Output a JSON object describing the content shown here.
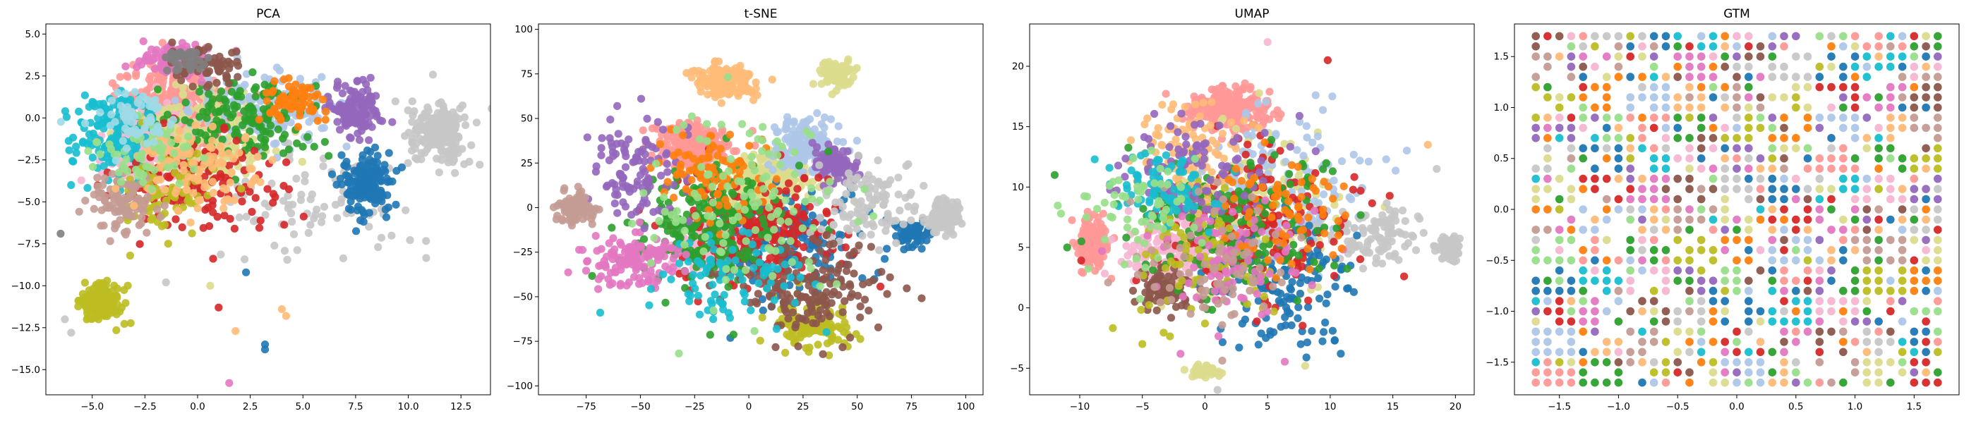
{
  "chart_data": [
    {
      "type": "scatter",
      "title": "PCA",
      "xlabel": "",
      "ylabel": "",
      "xlim": [
        -7.2,
        13.9
      ],
      "ylim": [
        -16.5,
        5.6
      ],
      "xticks": [
        -5.0,
        -2.5,
        0.0,
        2.5,
        5.0,
        7.5,
        10.0,
        12.5
      ],
      "yticks": [
        5.0,
        2.5,
        0.0,
        -2.5,
        -5.0,
        -7.5,
        -10.0,
        -12.5,
        -15.0
      ],
      "xtick_labels": [
        "−5.0",
        "−2.5",
        "0.0",
        "2.5",
        "5.0",
        "7.5",
        "10.0",
        "12.5"
      ],
      "ytick_labels": [
        "5.0",
        "2.5",
        "0.0",
        "−2.5",
        "−5.0",
        "−7.5",
        "−10.0",
        "−12.5",
        "−15.0"
      ],
      "grid": false,
      "clusters": [
        {
          "color": "#ff9896",
          "cx": -1.0,
          "cy": 0.5,
          "sx": 2.0,
          "sy": 2.2,
          "n": 420
        },
        {
          "color": "#f7b6d2",
          "cx": -2.0,
          "cy": -1.5,
          "sx": 1.8,
          "sy": 2.0,
          "n": 260
        },
        {
          "color": "#dbdb8d",
          "cx": 0.5,
          "cy": -1.0,
          "sx": 2.6,
          "sy": 2.2,
          "n": 220
        },
        {
          "color": "#aec7e8",
          "cx": 3.5,
          "cy": 0.5,
          "sx": 2.8,
          "sy": 1.8,
          "n": 170
        },
        {
          "color": "#c7c7c7",
          "cx": 11.5,
          "cy": -1.0,
          "sx": 1.2,
          "sy": 1.6,
          "n": 200
        },
        {
          "color": "#c7c7c7",
          "cx": 5.0,
          "cy": -5.0,
          "sx": 4.5,
          "sy": 2.5,
          "n": 90
        },
        {
          "color": "#1f77b4",
          "cx": 8.0,
          "cy": -4.0,
          "sx": 0.9,
          "sy": 1.5,
          "n": 170
        },
        {
          "color": "#9467bd",
          "cx": 7.5,
          "cy": 0.5,
          "sx": 1.0,
          "sy": 1.4,
          "n": 130
        },
        {
          "color": "#2ca02c",
          "cx": 2.0,
          "cy": 0.0,
          "sx": 3.0,
          "sy": 2.2,
          "n": 160
        },
        {
          "color": "#17becf",
          "cx": -4.0,
          "cy": -1.0,
          "sx": 1.8,
          "sy": 2.2,
          "n": 140
        },
        {
          "color": "#d62728",
          "cx": 0.0,
          "cy": -4.0,
          "sx": 3.5,
          "sy": 2.4,
          "n": 130
        },
        {
          "color": "#bcbd22",
          "cx": -4.5,
          "cy": -11.0,
          "sx": 0.8,
          "sy": 0.9,
          "n": 190
        },
        {
          "color": "#bcbd22",
          "cx": -1.5,
          "cy": -4.5,
          "sx": 2.0,
          "sy": 2.0,
          "n": 80
        },
        {
          "color": "#c49c94",
          "cx": -3.5,
          "cy": -5.0,
          "sx": 1.4,
          "sy": 1.4,
          "n": 100
        },
        {
          "color": "#ffbb78",
          "cx": 0.0,
          "cy": -3.0,
          "sx": 2.5,
          "sy": 2.0,
          "n": 100
        },
        {
          "color": "#ff7f0e",
          "cx": 4.5,
          "cy": 1.0,
          "sx": 1.5,
          "sy": 1.0,
          "n": 70
        },
        {
          "color": "#e377c2",
          "cx": -1.0,
          "cy": 3.5,
          "sx": 1.6,
          "sy": 0.8,
          "n": 120
        },
        {
          "color": "#8c564b",
          "cx": 0.5,
          "cy": 3.0,
          "sx": 1.5,
          "sy": 1.0,
          "n": 60
        },
        {
          "color": "#98df8a",
          "cx": -2.5,
          "cy": -2.0,
          "sx": 2.0,
          "sy": 1.5,
          "n": 60
        },
        {
          "color": "#9edae5",
          "cx": -3.0,
          "cy": 0.0,
          "sx": 1.5,
          "sy": 1.5,
          "n": 60
        },
        {
          "color": "#7f7f7f",
          "cx": -0.5,
          "cy": 3.5,
          "sx": 1.0,
          "sy": 0.6,
          "n": 40
        }
      ],
      "outliers": [
        {
          "x": 1.5,
          "y": -15.8,
          "color": "#e377c2"
        },
        {
          "x": 1.8,
          "y": -12.7,
          "color": "#ffbb78"
        },
        {
          "x": 3.2,
          "y": -13.5,
          "color": "#1f77b4"
        },
        {
          "x": 3.2,
          "y": -13.8,
          "color": "#1f77b4"
        },
        {
          "x": 4.0,
          "y": -11.4,
          "color": "#ffbb78"
        },
        {
          "x": 4.2,
          "y": -11.8,
          "color": "#ffbb78"
        },
        {
          "x": 0.6,
          "y": -10.0,
          "color": "#dbdb8d"
        },
        {
          "x": 1.0,
          "y": -11.3,
          "color": "#d62728"
        },
        {
          "x": -1.5,
          "y": -9.8,
          "color": "#c7c7c7"
        },
        {
          "x": 2.3,
          "y": -9.2,
          "color": "#1f77b4"
        },
        {
          "x": -3.2,
          "y": -8.2,
          "color": "#bcbd22"
        },
        {
          "x": -6.3,
          "y": -12.0,
          "color": "#c7c7c7"
        },
        {
          "x": -6.0,
          "y": -12.8,
          "color": "#c7c7c7"
        },
        {
          "x": -6.5,
          "y": -6.9,
          "color": "#7f7f7f"
        },
        {
          "x": -6.0,
          "y": -4.0,
          "color": "#17becf"
        }
      ]
    },
    {
      "type": "scatter",
      "title": "t-SNE",
      "xlabel": "",
      "ylabel": "",
      "xlim": [
        -97,
        108
      ],
      "ylim": [
        -105,
        103
      ],
      "xticks": [
        -75,
        -50,
        -25,
        0,
        25,
        50,
        75,
        100
      ],
      "yticks": [
        100,
        75,
        50,
        25,
        0,
        -25,
        -50,
        -75,
        -100
      ],
      "xtick_labels": [
        "−75",
        "−50",
        "−25",
        "0",
        "25",
        "50",
        "75",
        "100"
      ],
      "ytick_labels": [
        "100",
        "75",
        "50",
        "25",
        "0",
        "−25",
        "−50",
        "−75",
        "−100"
      ],
      "grid": false,
      "clusters": [
        {
          "color": "#ff9896",
          "cx": -25,
          "cy": 35,
          "sx": 14,
          "sy": 10,
          "n": 280
        },
        {
          "color": "#dbdb8d",
          "cx": 10,
          "cy": 15,
          "sx": 18,
          "sy": 16,
          "n": 230
        },
        {
          "color": "#f7b6d2",
          "cx": -15,
          "cy": -22,
          "sx": 14,
          "sy": 10,
          "n": 200
        },
        {
          "color": "#aec7e8",
          "cx": 25,
          "cy": 35,
          "sx": 14,
          "sy": 12,
          "n": 160
        },
        {
          "color": "#9467bd",
          "cx": 40,
          "cy": 25,
          "sx": 8,
          "sy": 8,
          "n": 110
        },
        {
          "color": "#1f77b4",
          "cx": 20,
          "cy": -20,
          "sx": 30,
          "sy": 25,
          "n": 160
        },
        {
          "color": "#1f77b4",
          "cx": 75,
          "cy": -15,
          "sx": 6,
          "sy": 6,
          "n": 60
        },
        {
          "color": "#d62728",
          "cx": 5,
          "cy": -15,
          "sx": 32,
          "sy": 26,
          "n": 240
        },
        {
          "color": "#2ca02c",
          "cx": -20,
          "cy": -10,
          "sx": 30,
          "sy": 30,
          "n": 220
        },
        {
          "color": "#c7c7c7",
          "cx": 90,
          "cy": -5,
          "sx": 5,
          "sy": 7,
          "n": 140
        },
        {
          "color": "#c7c7c7",
          "cx": 55,
          "cy": 0,
          "sx": 18,
          "sy": 20,
          "n": 110
        },
        {
          "color": "#ffbb78",
          "cx": -10,
          "cy": 70,
          "sx": 12,
          "sy": 8,
          "n": 140
        },
        {
          "color": "#dbdb8d",
          "cx": 40,
          "cy": 75,
          "sx": 7,
          "sy": 6,
          "n": 90
        },
        {
          "color": "#bcbd22",
          "cx": 28,
          "cy": -65,
          "sx": 14,
          "sy": 12,
          "n": 150
        },
        {
          "color": "#8c564b",
          "cx": 30,
          "cy": -45,
          "sx": 30,
          "sy": 20,
          "n": 160
        },
        {
          "color": "#e377c2",
          "cx": -55,
          "cy": -30,
          "sx": 18,
          "sy": 12,
          "n": 130
        },
        {
          "color": "#9467bd",
          "cx": -50,
          "cy": 20,
          "sx": 20,
          "sy": 25,
          "n": 110
        },
        {
          "color": "#c49c94",
          "cx": -80,
          "cy": 0,
          "sx": 7,
          "sy": 7,
          "n": 110
        },
        {
          "color": "#ff7f0e",
          "cx": -15,
          "cy": 20,
          "sx": 20,
          "sy": 20,
          "n": 100
        },
        {
          "color": "#17becf",
          "cx": -10,
          "cy": -40,
          "sx": 30,
          "sy": 20,
          "n": 90
        },
        {
          "color": "#98df8a",
          "cx": 0,
          "cy": 0,
          "sx": 40,
          "sy": 40,
          "n": 120
        }
      ],
      "outliers": []
    },
    {
      "type": "scatter",
      "title": "UMAP",
      "xlabel": "",
      "ylabel": "",
      "xlim": [
        -14.0,
        21.5
      ],
      "ylim": [
        -7.2,
        23.5
      ],
      "xticks": [
        -10,
        -5,
        0,
        5,
        10,
        15,
        20
      ],
      "yticks": [
        20,
        15,
        10,
        5,
        0,
        -5
      ],
      "xtick_labels": [
        "−10",
        "−5",
        "0",
        "5",
        "10",
        "15",
        "20"
      ],
      "ytick_labels": [
        "20",
        "15",
        "10",
        "5",
        "0",
        "−5"
      ],
      "grid": false,
      "clusters": [
        {
          "color": "#ff9896",
          "cx": 2.0,
          "cy": 16.5,
          "sx": 2.5,
          "sy": 1.5,
          "n": 220
        },
        {
          "color": "#ff9896",
          "cx": -9.0,
          "cy": 5.5,
          "sx": 1.0,
          "sy": 2.0,
          "n": 120
        },
        {
          "color": "#dbdb8d",
          "cx": 4.0,
          "cy": 8.0,
          "sx": 6.0,
          "sy": 5.0,
          "n": 220
        },
        {
          "color": "#aec7e8",
          "cx": 6.0,
          "cy": 10.0,
          "sx": 6.0,
          "sy": 5.0,
          "n": 150
        },
        {
          "color": "#f7b6d2",
          "cx": -3.0,
          "cy": 4.5,
          "sx": 3.0,
          "sy": 2.0,
          "n": 160
        },
        {
          "color": "#8c564b",
          "cx": -3.0,
          "cy": 1.5,
          "sx": 2.0,
          "sy": 1.5,
          "n": 90
        },
        {
          "color": "#c7c7c7",
          "cx": 19.5,
          "cy": 5.0,
          "sx": 0.7,
          "sy": 0.8,
          "n": 80
        },
        {
          "color": "#c7c7c7",
          "cx": 14.0,
          "cy": 6.0,
          "sx": 3.5,
          "sy": 2.0,
          "n": 100
        },
        {
          "color": "#1f77b4",
          "cx": 6.0,
          "cy": 2.0,
          "sx": 5.0,
          "sy": 4.5,
          "n": 150
        },
        {
          "color": "#d62728",
          "cx": 4.0,
          "cy": 7.0,
          "sx": 6.0,
          "sy": 5.0,
          "n": 190
        },
        {
          "color": "#2ca02c",
          "cx": 2.0,
          "cy": 7.0,
          "sx": 7.0,
          "sy": 5.0,
          "n": 190
        },
        {
          "color": "#bcbd22",
          "cx": 0.0,
          "cy": 5.0,
          "sx": 5.0,
          "sy": 5.0,
          "n": 90
        },
        {
          "color": "#dbdb8d",
          "cx": 0.0,
          "cy": -5.3,
          "sx": 1.0,
          "sy": 0.4,
          "n": 40
        },
        {
          "color": "#ffbb78",
          "cx": -1.0,
          "cy": 13.0,
          "sx": 3.5,
          "sy": 3.5,
          "n": 100
        },
        {
          "color": "#9467bd",
          "cx": -1.0,
          "cy": 11.5,
          "sx": 5.0,
          "sy": 3.5,
          "n": 100
        },
        {
          "color": "#e377c2",
          "cx": 2.0,
          "cy": 4.0,
          "sx": 6.0,
          "sy": 4.0,
          "n": 90
        },
        {
          "color": "#17becf",
          "cx": -3.0,
          "cy": 10.0,
          "sx": 4.0,
          "sy": 3.0,
          "n": 80
        },
        {
          "color": "#ff7f0e",
          "cx": 6.0,
          "cy": 8.0,
          "sx": 4.0,
          "sy": 4.0,
          "n": 70
        },
        {
          "color": "#c49c94",
          "cx": 1.0,
          "cy": 3.0,
          "sx": 5.0,
          "sy": 5.0,
          "n": 70
        },
        {
          "color": "#98df8a",
          "cx": -5.0,
          "cy": 8.0,
          "sx": 4.0,
          "sy": 4.0,
          "n": 60
        }
      ],
      "outliers": [
        {
          "x": -12.0,
          "y": 11.0,
          "color": "#2ca02c"
        },
        {
          "x": -11.5,
          "y": 7.8,
          "color": "#98df8a"
        },
        {
          "x": -11.0,
          "y": 5.0,
          "color": "#2ca02c"
        },
        {
          "x": 9.8,
          "y": 20.5,
          "color": "#d62728"
        },
        {
          "x": 5.0,
          "y": 22.0,
          "color": "#f7b6d2"
        },
        {
          "x": 18.5,
          "y": 11.5,
          "color": "#c7c7c7"
        },
        {
          "x": 17.8,
          "y": 13.5,
          "color": "#ffbb78"
        },
        {
          "x": -5.0,
          "y": -3.0,
          "color": "#bcbd22"
        },
        {
          "x": 8.0,
          "y": -4.8,
          "color": "#dbdb8d"
        },
        {
          "x": 1.0,
          "y": -6.8,
          "color": "#c7c7c7"
        }
      ]
    },
    {
      "type": "scatter",
      "title": "GTM",
      "xlabel": "",
      "ylabel": "",
      "xlim": [
        -1.88,
        1.88
      ],
      "ylim": [
        -1.82,
        1.82
      ],
      "xticks": [
        -1.5,
        -1.0,
        -0.5,
        0.0,
        0.5,
        1.0,
        1.5
      ],
      "yticks": [
        1.5,
        1.0,
        0.5,
        0.0,
        -0.5,
        -1.0,
        -1.5
      ],
      "xtick_labels": [
        "−1.5",
        "−1.0",
        "−0.5",
        "0.0",
        "0.5",
        "1.0",
        "1.5"
      ],
      "ytick_labels": [
        "1.5",
        "1.0",
        "0.5",
        "0.0",
        "−0.5",
        "−1.0",
        "−1.5"
      ],
      "grid": false,
      "lattice": {
        "min": -1.7,
        "max": 1.7,
        "size": 35,
        "fill": 0.78,
        "palette": [
          "#ff9896",
          "#dbdb8d",
          "#f7b6d2",
          "#aec7e8",
          "#c7c7c7",
          "#2ca02c",
          "#d62728",
          "#9467bd",
          "#ffbb78",
          "#1f77b4",
          "#bcbd22",
          "#e377c2",
          "#98df8a",
          "#c49c94",
          "#17becf",
          "#ff7f0e",
          "#8c564b"
        ]
      },
      "clusters": [],
      "outliers": []
    }
  ]
}
